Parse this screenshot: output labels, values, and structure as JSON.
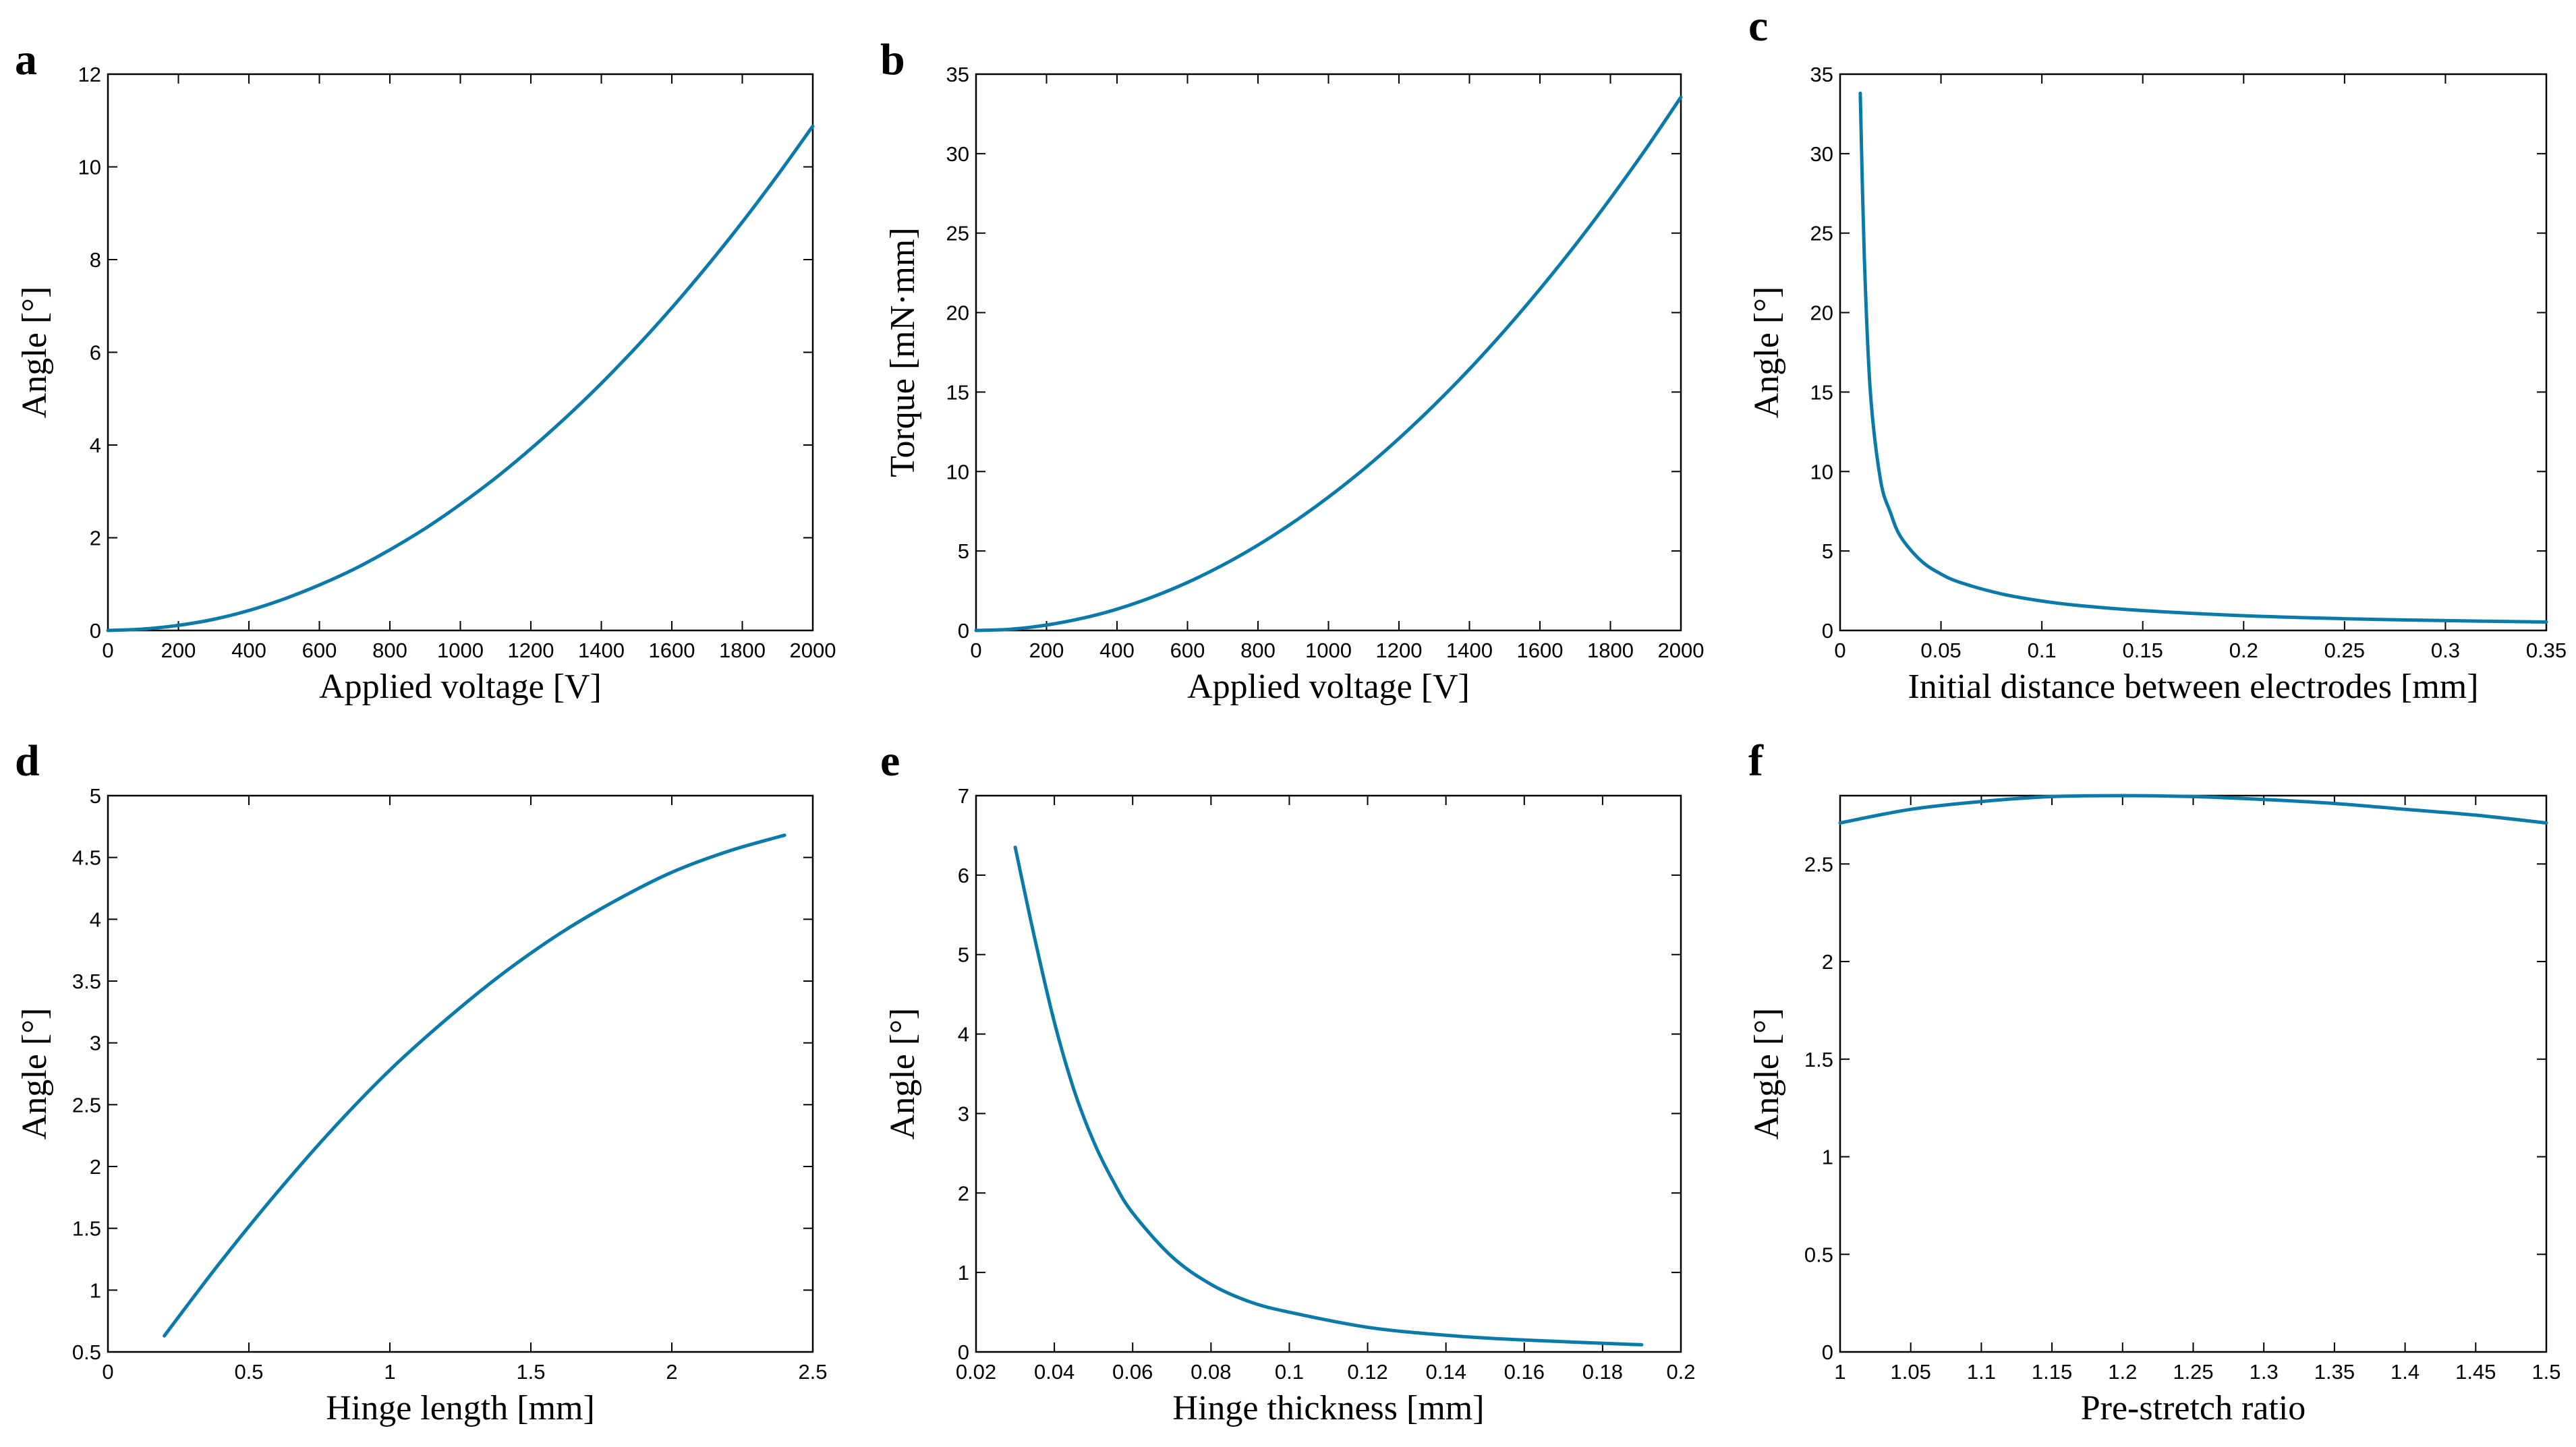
{
  "colors": {
    "line": "#0a7aa8",
    "axes": "#000000",
    "background": "#ffffff"
  },
  "chart_data": [
    {
      "panel": "a",
      "type": "line",
      "xlabel": "Applied voltage [V]",
      "ylabel": "Angle [°]",
      "xlim": [
        0,
        2000
      ],
      "ylim": [
        0,
        12
      ],
      "xticks": [
        "0",
        "200",
        "400",
        "600",
        "800",
        "1000",
        "1200",
        "1400",
        "1600",
        "1800",
        "2000"
      ],
      "yticks": [
        "0",
        "2",
        "4",
        "6",
        "8",
        "10",
        "12"
      ],
      "x": [
        0,
        100,
        200,
        300,
        400,
        500,
        600,
        700,
        800,
        900,
        1000,
        1100,
        1200,
        1300,
        1400,
        1500,
        1600,
        1700,
        1800,
        1900,
        2000
      ],
      "y": [
        0,
        0.03,
        0.11,
        0.24,
        0.43,
        0.68,
        0.98,
        1.33,
        1.74,
        2.2,
        2.72,
        3.29,
        3.92,
        4.6,
        5.33,
        6.12,
        6.96,
        7.86,
        8.81,
        9.82,
        10.88
      ]
    },
    {
      "panel": "b",
      "type": "line",
      "xlabel": "Applied voltage [V]",
      "ylabel": "Torque [mN·mm]",
      "xlim": [
        0,
        2000
      ],
      "ylim": [
        0,
        35
      ],
      "xticks": [
        "0",
        "200",
        "400",
        "600",
        "800",
        "1000",
        "1200",
        "1400",
        "1600",
        "1800",
        "2000"
      ],
      "yticks": [
        "0",
        "5",
        "10",
        "15",
        "20",
        "25",
        "30",
        "35"
      ],
      "x": [
        0,
        100,
        200,
        300,
        400,
        500,
        600,
        700,
        800,
        900,
        1000,
        1100,
        1200,
        1300,
        1400,
        1500,
        1600,
        1700,
        1800,
        1900,
        2000
      ],
      "y": [
        0,
        0.08,
        0.34,
        0.76,
        1.34,
        2.1,
        3.02,
        4.11,
        5.37,
        6.8,
        8.39,
        10.15,
        12.08,
        14.18,
        16.44,
        18.88,
        21.48,
        24.24,
        27.18,
        30.28,
        33.55
      ]
    },
    {
      "panel": "c",
      "type": "line",
      "xlabel": "Initial distance between electrodes [mm]",
      "ylabel": "Angle [°]",
      "xlim": [
        0,
        0.35
      ],
      "ylim": [
        0,
        35
      ],
      "xticks": [
        "0",
        "0.05",
        "0.1",
        "0.15",
        "0.2",
        "0.25",
        "0.3",
        "0.35"
      ],
      "yticks": [
        "0",
        "5",
        "10",
        "15",
        "20",
        "25",
        "30",
        "35"
      ],
      "x": [
        0.01,
        0.012,
        0.015,
        0.02,
        0.025,
        0.03,
        0.04,
        0.05,
        0.06,
        0.08,
        0.1,
        0.12,
        0.15,
        0.2,
        0.25,
        0.3,
        0.35
      ],
      "y": [
        33.8,
        23.5,
        15.0,
        9.5,
        7.4,
        5.9,
        4.4,
        3.55,
        3.0,
        2.3,
        1.85,
        1.55,
        1.25,
        0.93,
        0.74,
        0.62,
        0.53
      ]
    },
    {
      "panel": "d",
      "type": "line",
      "xlabel": "Hinge length [mm]",
      "ylabel": "Angle [°]",
      "xlim": [
        0,
        2.5
      ],
      "ylim": [
        0.5,
        5
      ],
      "xticks": [
        "0",
        "0.5",
        "1",
        "1.5",
        "2",
        "2.5"
      ],
      "yticks": [
        "0.5",
        "1",
        "1.5",
        "2",
        "2.5",
        "3",
        "3.5",
        "4",
        "4.5",
        "5"
      ],
      "x": [
        0.2,
        0.4,
        0.6,
        0.8,
        1.0,
        1.2,
        1.4,
        1.6,
        1.8,
        2.0,
        2.2,
        2.4
      ],
      "y": [
        0.63,
        1.23,
        1.79,
        2.31,
        2.78,
        3.19,
        3.56,
        3.88,
        4.15,
        4.38,
        4.55,
        4.68
      ]
    },
    {
      "panel": "e",
      "type": "line",
      "xlabel": "Hinge thickness [mm]",
      "ylabel": "Angle [°]",
      "xlim": [
        0.02,
        0.2
      ],
      "ylim": [
        0,
        7
      ],
      "xticks": [
        "0.02",
        "0.04",
        "0.06",
        "0.08",
        "0.1",
        "0.12",
        "0.14",
        "0.16",
        "0.18",
        "0.2"
      ],
      "yticks": [
        "0",
        "1",
        "2",
        "3",
        "4",
        "5",
        "6",
        "7"
      ],
      "x": [
        0.03,
        0.035,
        0.04,
        0.045,
        0.05,
        0.055,
        0.06,
        0.07,
        0.08,
        0.09,
        0.1,
        0.12,
        0.14,
        0.16,
        0.19
      ],
      "y": [
        6.35,
        5.2,
        4.15,
        3.3,
        2.65,
        2.15,
        1.75,
        1.2,
        0.85,
        0.63,
        0.5,
        0.31,
        0.21,
        0.15,
        0.09
      ]
    },
    {
      "panel": "f",
      "type": "line",
      "xlabel": "Pre-stretch ratio",
      "ylabel": "Angle [°]",
      "xlim": [
        1,
        1.5
      ],
      "ylim": [
        0,
        2.85
      ],
      "xticks": [
        "1",
        "1.05",
        "1.1",
        "1.15",
        "1.2",
        "1.25",
        "1.3",
        "1.35",
        "1.4",
        "1.45",
        "1.5"
      ],
      "yticks": [
        "0",
        "0.5",
        "1",
        "1.5",
        "2",
        "2.5"
      ],
      "x": [
        1.0,
        1.05,
        1.1,
        1.15,
        1.2,
        1.25,
        1.3,
        1.35,
        1.4,
        1.45,
        1.5
      ],
      "y": [
        2.71,
        2.78,
        2.82,
        2.845,
        2.85,
        2.845,
        2.83,
        2.81,
        2.78,
        2.75,
        2.71
      ]
    }
  ]
}
